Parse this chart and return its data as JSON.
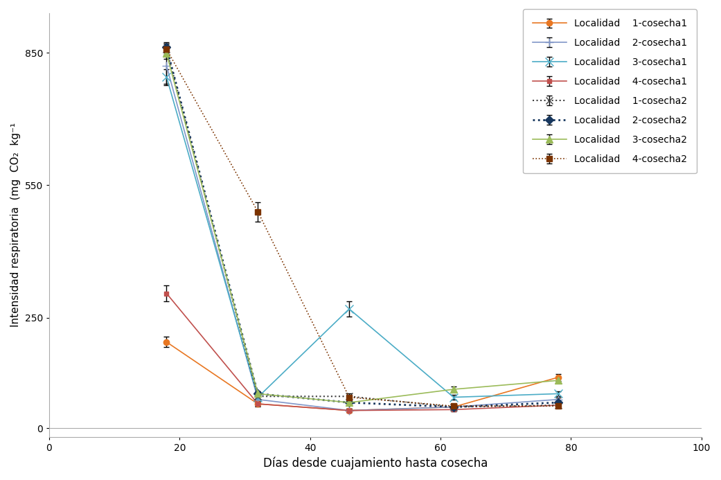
{
  "x": [
    18,
    32,
    46,
    62,
    78
  ],
  "series": {
    "L1_c1": {
      "y": [
        195,
        55,
        40,
        48,
        115
      ],
      "yerr": [
        12,
        6,
        4,
        4,
        8
      ],
      "color": "#E87722",
      "linestyle": "-",
      "marker": "o",
      "markersize": 6,
      "label": "Localidad    1-cosecha1",
      "linewidth": 1.2
    },
    "L2_c1": {
      "y": [
        820,
        65,
        40,
        48,
        65
      ],
      "yerr": [
        40,
        6,
        4,
        4,
        4
      ],
      "color": "#8096C8",
      "linestyle": "-",
      "marker": "+",
      "markersize": 9,
      "label": "Localidad    2-cosecha1",
      "linewidth": 1.2
    },
    "L3_c1": {
      "y": [
        795,
        70,
        270,
        70,
        78
      ],
      "yerr": [
        18,
        6,
        18,
        6,
        6
      ],
      "color": "#4BACC6",
      "linestyle": "-",
      "marker": "x",
      "markersize": 9,
      "label": "Localidad    3-cosecha1",
      "linewidth": 1.2
    },
    "L4_c1": {
      "y": [
        305,
        55,
        40,
        42,
        52
      ],
      "yerr": [
        18,
        5,
        4,
        4,
        4
      ],
      "color": "#C0504D",
      "linestyle": "-",
      "marker": "s",
      "markersize": 5,
      "label": "Localidad    4-cosecha1",
      "linewidth": 1.2
    },
    "L1_c2": {
      "y": [
        858,
        72,
        72,
        48,
        52
      ],
      "yerr": [
        12,
        6,
        6,
        4,
        4
      ],
      "color": "#404040",
      "linestyle": ":",
      "marker": "x",
      "markersize": 7,
      "label": "Localidad    1-cosecha2",
      "linewidth": 1.5
    },
    "L2_c2": {
      "y": [
        862,
        78,
        58,
        48,
        58
      ],
      "yerr": [
        12,
        6,
        4,
        4,
        4
      ],
      "color": "#17375E",
      "linestyle": ":",
      "marker": "D",
      "markersize": 6,
      "label": "Localidad    2-cosecha2",
      "linewidth": 2.0
    },
    "L3_c2": {
      "y": [
        848,
        78,
        58,
        88,
        108
      ],
      "yerr": [
        12,
        6,
        4,
        6,
        6
      ],
      "color": "#9BBB59",
      "linestyle": "-",
      "marker": "^",
      "markersize": 7,
      "label": "Localidad    3-cosecha2",
      "linewidth": 1.2
    },
    "L4_c2": {
      "y": [
        858,
        490,
        70,
        50,
        50
      ],
      "yerr": [
        12,
        22,
        4,
        4,
        4
      ],
      "color": "#7B3300",
      "linestyle": ":",
      "marker": "s",
      "markersize": 6,
      "label": "Localidad    4-cosecha2",
      "linewidth": 1.2
    }
  },
  "xlabel": "Días desde cuajamiento hasta cosecha",
  "ylabel": "Intensidad respiratoria  (mg  CO₂  kg⁻¹",
  "xlim": [
    0,
    100
  ],
  "ylim": [
    -20,
    940
  ],
  "yticks": [
    0,
    250,
    550,
    850
  ],
  "xticks": [
    0,
    20,
    40,
    60,
    80,
    100
  ],
  "figsize": [
    10.41,
    6.93
  ],
  "dpi": 100
}
